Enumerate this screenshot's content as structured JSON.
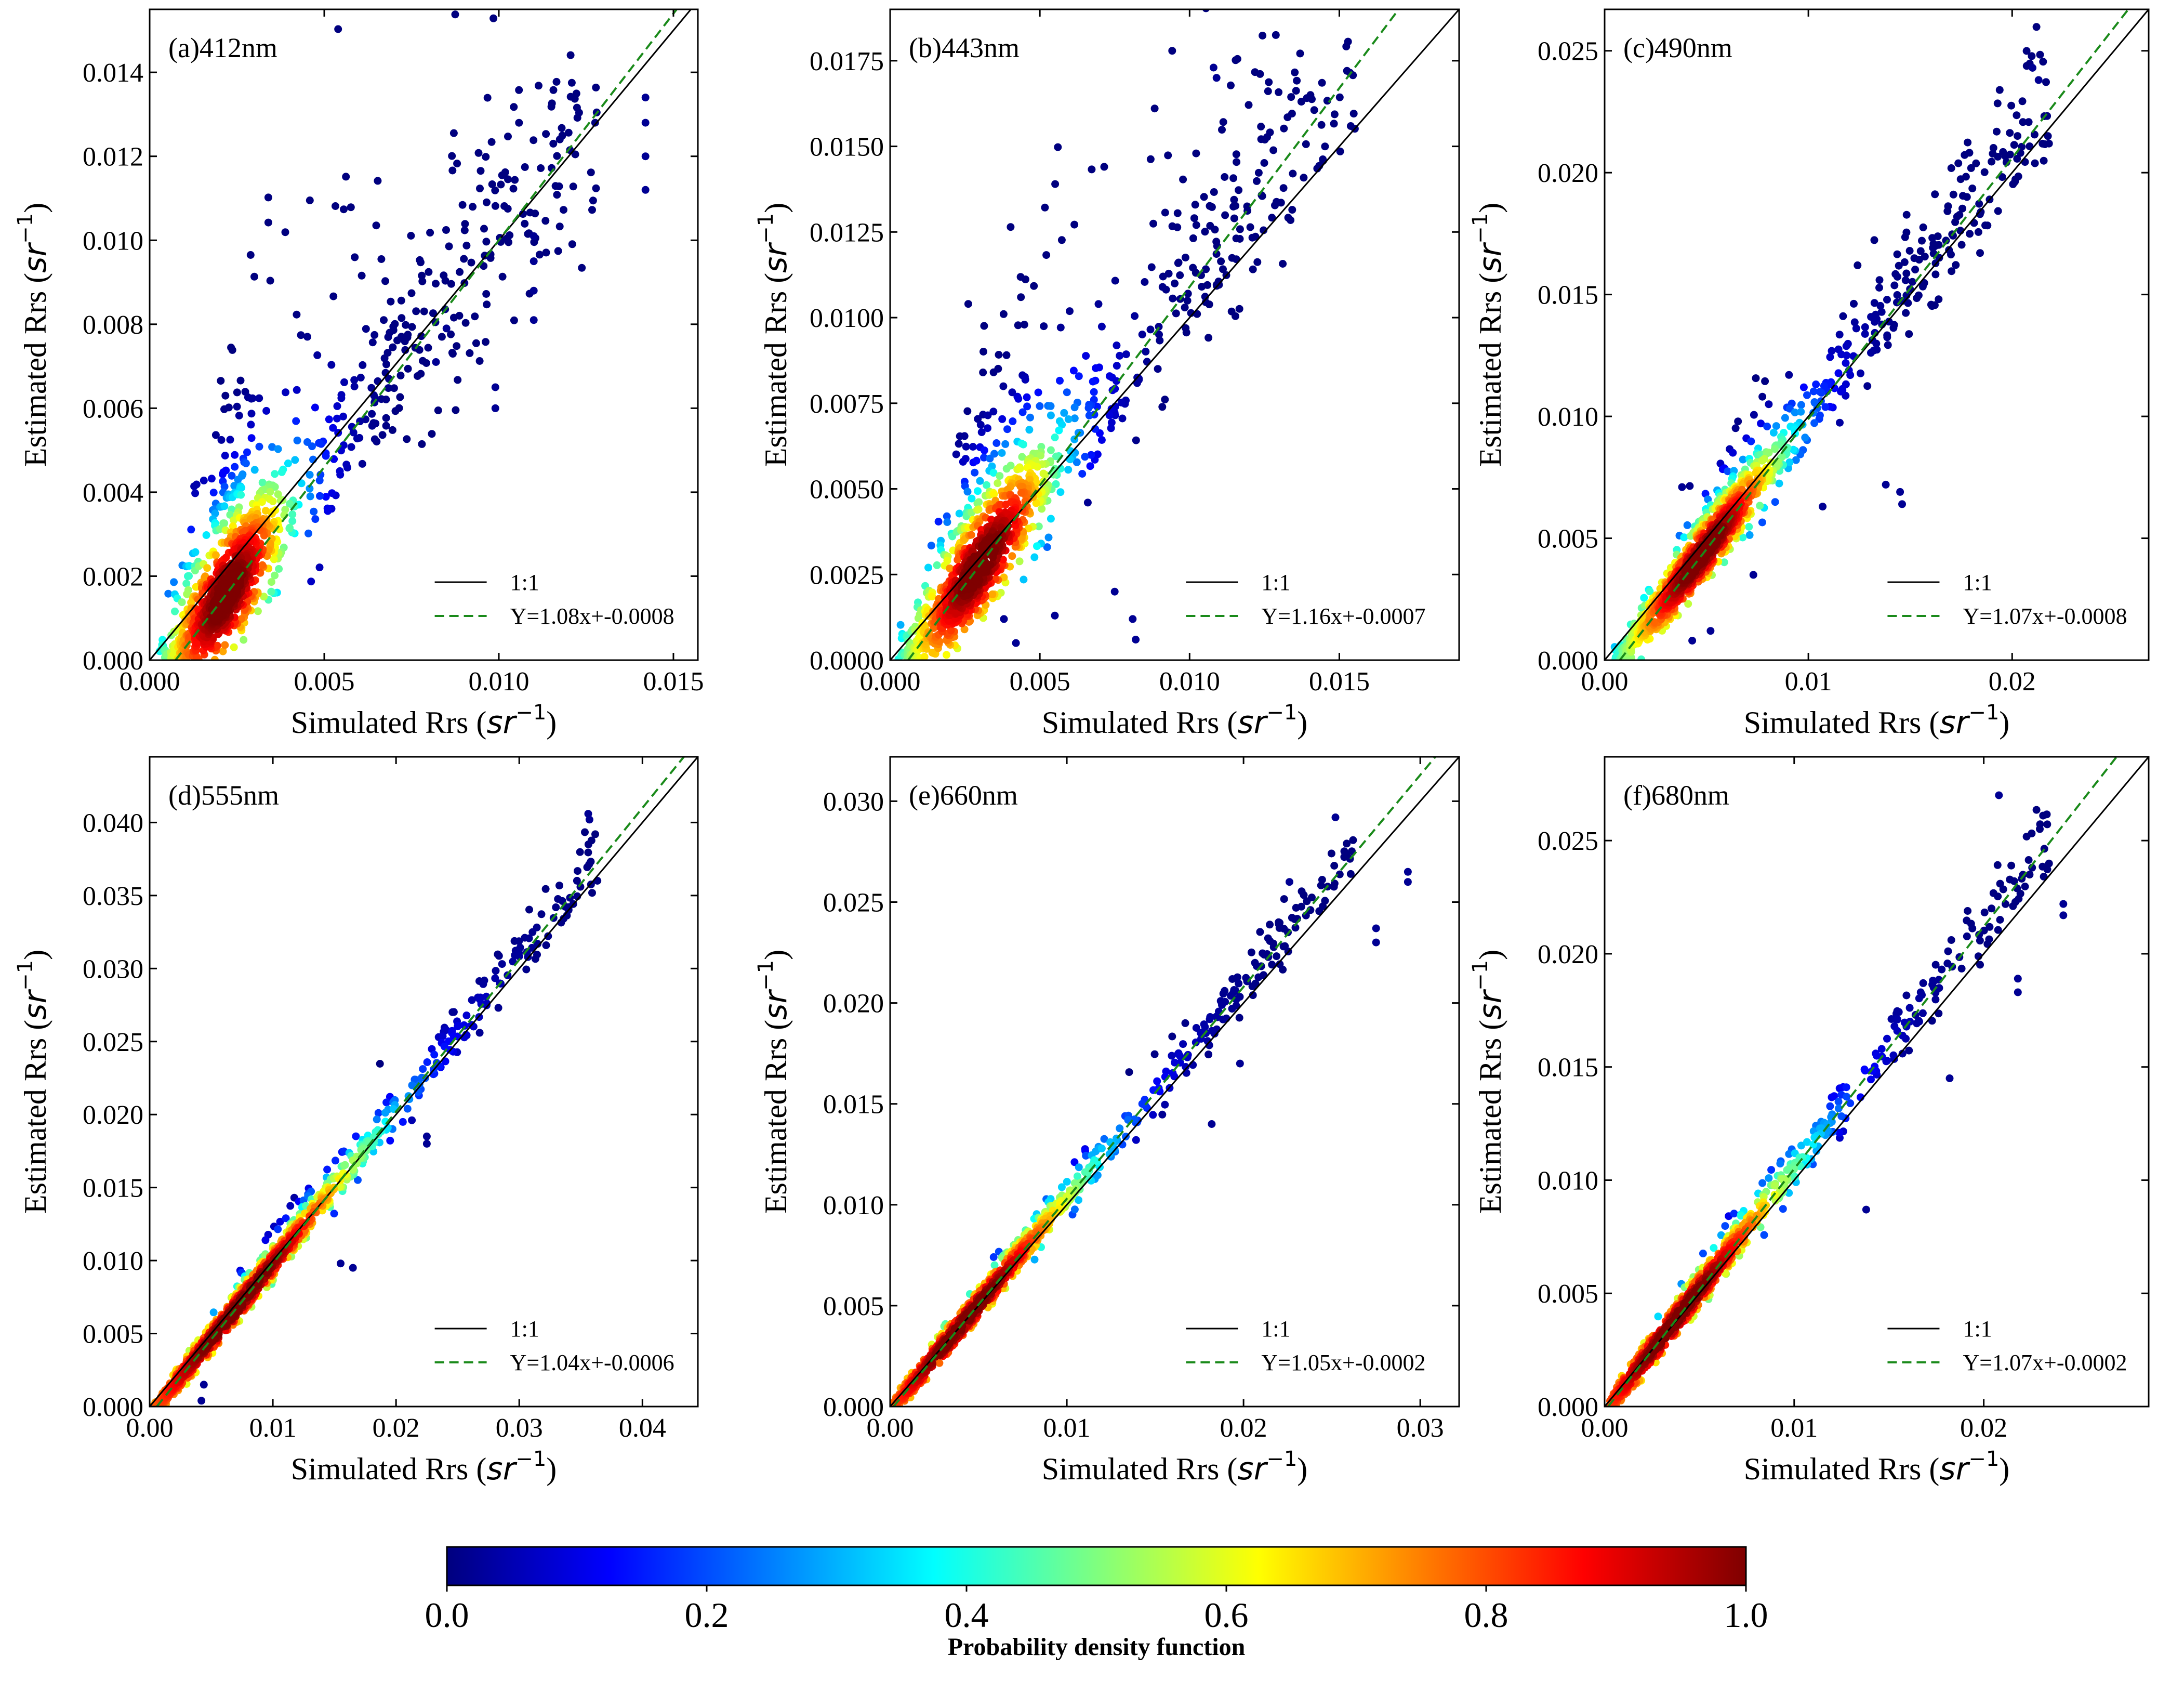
{
  "chart_data": [
    {
      "type": "scatter",
      "panel_label": "(a)412nm",
      "xlabel_text": "Simulated Rrs",
      "ylabel_text": "Estimated Rrs",
      "unit_base": "sr",
      "unit_exp": "−1",
      "xlim": [
        0,
        0.0157
      ],
      "ylim": [
        0,
        0.0155
      ],
      "xticks": [
        0.0,
        0.005,
        0.01,
        0.015
      ],
      "xtick_labels": [
        "0.000",
        "0.005",
        "0.010",
        "0.015"
      ],
      "yticks": [
        0,
        0.002,
        0.004,
        0.006,
        0.008,
        0.01,
        0.012,
        0.014
      ],
      "ytick_labels": [
        "0.000",
        "0.002",
        "0.004",
        "0.006",
        "0.008",
        "0.010",
        "0.012",
        "0.014"
      ],
      "legend": [
        "1:1",
        "Y=1.08x+-0.0008"
      ],
      "fit": {
        "slope": 1.08,
        "intercept": -0.0008
      },
      "cloud": {
        "center": [
          0.0022,
          0.0016
        ],
        "spread_along": 0.0016,
        "spread_across": 0.0011,
        "upper_scatter": 0.0035,
        "n": 1300
      },
      "outliers": [
        [
          0.0142,
          0.0134
        ],
        [
          0.0142,
          0.0128
        ],
        [
          0.0142,
          0.012
        ],
        [
          0.0142,
          0.0112
        ],
        [
          0.011,
          0.0101
        ],
        [
          0.011,
          0.0095
        ],
        [
          0.011,
          0.0088
        ],
        [
          0.011,
          0.0081
        ],
        [
          0.0099,
          0.0065
        ],
        [
          0.0099,
          0.006
        ],
        [
          0.0082,
          0.0071
        ],
        [
          0.0085,
          0.0079
        ]
      ]
    },
    {
      "type": "scatter",
      "panel_label": "(b)443nm",
      "xlabel_text": "Simulated Rrs",
      "ylabel_text": "Estimated Rrs",
      "unit_base": "sr",
      "unit_exp": "−1",
      "xlim": [
        0,
        0.019
      ],
      "ylim": [
        0,
        0.019
      ],
      "xticks": [
        0.0,
        0.005,
        0.01,
        0.015
      ],
      "xtick_labels": [
        "0.000",
        "0.005",
        "0.010",
        "0.015"
      ],
      "yticks": [
        0,
        0.0025,
        0.005,
        0.0075,
        0.01,
        0.0125,
        0.015,
        0.0175
      ],
      "ytick_labels": [
        "0.0000",
        "0.0025",
        "0.0050",
        "0.0075",
        "0.0100",
        "0.0125",
        "0.0150",
        "0.0175"
      ],
      "legend": [
        "1:1",
        "Y=1.16x+-0.0007"
      ],
      "fit": {
        "slope": 1.16,
        "intercept": -0.0007
      },
      "cloud": {
        "center": [
          0.003,
          0.0027
        ],
        "spread_along": 0.0022,
        "spread_across": 0.0012,
        "upper_scatter": 0.0042,
        "n": 1300
      },
      "outliers": [
        [
          0.0108,
          0.0173
        ],
        [
          0.0109,
          0.017
        ],
        [
          0.0082,
          0.0006
        ],
        [
          0.0081,
          0.0012
        ],
        [
          0.0075,
          0.002
        ],
        [
          0.0038,
          0.0012
        ],
        [
          0.0042,
          0.0005
        ],
        [
          0.0055,
          0.0013
        ],
        [
          0.0066,
          0.0046
        ]
      ]
    },
    {
      "type": "scatter",
      "panel_label": "(c)490nm",
      "xlabel_text": "Simulated Rrs",
      "ylabel_text": "Estimated Rrs",
      "unit_base": "sr",
      "unit_exp": "−1",
      "xlim": [
        0,
        0.0267
      ],
      "ylim": [
        0,
        0.0267
      ],
      "xticks": [
        0.0,
        0.01,
        0.02
      ],
      "xtick_labels": [
        "0.00",
        "0.01",
        "0.02"
      ],
      "yticks": [
        0,
        0.005,
        0.01,
        0.015,
        0.02,
        0.025
      ],
      "ytick_labels": [
        "0.000",
        "0.005",
        "0.010",
        "0.015",
        "0.020",
        "0.025"
      ],
      "legend": [
        "1:1",
        "Y=1.07x+-0.0008"
      ],
      "fit": {
        "slope": 1.07,
        "intercept": -0.0008
      },
      "cloud": {
        "center": [
          0.0048,
          0.0043
        ],
        "spread_along": 0.0035,
        "spread_across": 0.0009,
        "upper_scatter": 0.0018,
        "n": 1300
      },
      "outliers": [
        [
          0.021,
          0.0243
        ],
        [
          0.0213,
          0.0238
        ],
        [
          0.0145,
          0.0069
        ],
        [
          0.0138,
          0.0072
        ],
        [
          0.0146,
          0.0064
        ],
        [
          0.0073,
          0.0035
        ],
        [
          0.0052,
          0.0012
        ],
        [
          0.0043,
          0.0008
        ],
        [
          0.0107,
          0.0063
        ],
        [
          0.0038,
          0.0071
        ]
      ]
    },
    {
      "type": "scatter",
      "panel_label": "(d)555nm",
      "xlabel_text": "Simulated Rrs",
      "ylabel_text": "Estimated Rrs",
      "unit_base": "sr",
      "unit_exp": "−1",
      "xlim": [
        0,
        0.0445
      ],
      "ylim": [
        0,
        0.0445
      ],
      "xticks": [
        0.0,
        0.01,
        0.02,
        0.03,
        0.04
      ],
      "xtick_labels": [
        "0.00",
        "0.01",
        "0.02",
        "0.03",
        "0.04"
      ],
      "yticks": [
        0,
        0.005,
        0.01,
        0.015,
        0.02,
        0.025,
        0.03,
        0.035,
        0.04
      ],
      "ytick_labels": [
        "0.000",
        "0.005",
        "0.010",
        "0.015",
        "0.020",
        "0.025",
        "0.030",
        "0.035",
        "0.040"
      ],
      "legend": [
        "1:1",
        "Y=1.04x+-0.0006"
      ],
      "fit": {
        "slope": 1.04,
        "intercept": -0.0006
      },
      "cloud": {
        "center": [
          0.007,
          0.0066
        ],
        "spread_along": 0.0095,
        "spread_across": 0.0008,
        "upper_scatter": 0.0012,
        "n": 1100
      },
      "outliers": [
        [
          0.0356,
          0.0406
        ],
        [
          0.0357,
          0.0402
        ],
        [
          0.0225,
          0.018
        ],
        [
          0.0225,
          0.0185
        ],
        [
          0.0165,
          0.0095
        ],
        [
          0.0155,
          0.0098
        ],
        [
          0.0042,
          0.0004
        ],
        [
          0.0044,
          0.0015
        ]
      ]
    },
    {
      "type": "scatter",
      "panel_label": "(e)660nm",
      "xlabel_text": "Simulated Rrs",
      "ylabel_text": "Estimated Rrs",
      "unit_base": "sr",
      "unit_exp": "−1",
      "xlim": [
        0,
        0.0322
      ],
      "ylim": [
        0,
        0.0322
      ],
      "xticks": [
        0.0,
        0.01,
        0.02,
        0.03
      ],
      "xtick_labels": [
        "0.00",
        "0.01",
        "0.02",
        "0.03"
      ],
      "yticks": [
        0,
        0.005,
        0.01,
        0.015,
        0.02,
        0.025,
        0.03
      ],
      "ytick_labels": [
        "0.000",
        "0.005",
        "0.010",
        "0.015",
        "0.020",
        "0.025",
        "0.030"
      ],
      "legend": [
        "1:1",
        "Y=1.05x+-0.0002"
      ],
      "fit": {
        "slope": 1.05,
        "intercept": -0.0002
      },
      "cloud": {
        "center": [
          0.0042,
          0.0042
        ],
        "spread_along": 0.006,
        "spread_across": 0.0006,
        "upper_scatter": 0.0006,
        "n": 1000
      },
      "outliers": [
        [
          0.0293,
          0.0265
        ],
        [
          0.0293,
          0.026
        ],
        [
          0.0275,
          0.0237
        ],
        [
          0.0275,
          0.023
        ],
        [
          0.0252,
          0.0292
        ],
        [
          0.0226,
          0.026
        ],
        [
          0.0198,
          0.017
        ],
        [
          0.0182,
          0.014
        ]
      ]
    },
    {
      "type": "scatter",
      "panel_label": "(f)680nm",
      "xlabel_text": "Simulated Rrs",
      "ylabel_text": "Estimated Rrs",
      "unit_base": "sr",
      "unit_exp": "−1",
      "xlim": [
        0,
        0.0287
      ],
      "ylim": [
        0,
        0.0287
      ],
      "xticks": [
        0.0,
        0.01,
        0.02
      ],
      "xtick_labels": [
        "0.00",
        "0.01",
        "0.02"
      ],
      "yticks": [
        0,
        0.005,
        0.01,
        0.015,
        0.02,
        0.025
      ],
      "ytick_labels": [
        "0.000",
        "0.005",
        "0.010",
        "0.015",
        "0.020",
        "0.025"
      ],
      "legend": [
        "1:1",
        "Y=1.07x+-0.0002"
      ],
      "fit": {
        "slope": 1.07,
        "intercept": -0.0002
      },
      "cloud": {
        "center": [
          0.0038,
          0.0038
        ],
        "spread_along": 0.0055,
        "spread_across": 0.0006,
        "upper_scatter": 0.0007,
        "n": 1000
      },
      "outliers": [
        [
          0.0242,
          0.0222
        ],
        [
          0.0242,
          0.0217
        ],
        [
          0.0218,
          0.0189
        ],
        [
          0.0218,
          0.0183
        ],
        [
          0.0208,
          0.027
        ],
        [
          0.0182,
          0.0145
        ],
        [
          0.0164,
          0.0173
        ],
        [
          0.0138,
          0.0087
        ]
      ]
    }
  ],
  "colorbar": {
    "title": "Probability density function",
    "ticks": [
      0.0,
      0.2,
      0.4,
      0.6,
      0.8,
      1.0
    ],
    "tick_labels": [
      "0.0",
      "0.2",
      "0.4",
      "0.6",
      "0.8",
      "1.0"
    ],
    "range": [
      0,
      1
    ],
    "colormap": "jet",
    "colormap_stops": [
      "#00007f",
      "#0000ff",
      "#007fff",
      "#00ffff",
      "#7fff7f",
      "#ffff00",
      "#ff7f00",
      "#ff0000",
      "#7f0000"
    ]
  },
  "colors": {
    "one_to_one_line": "#000000",
    "fit_line": "#1a8a1a",
    "axes": "#000000",
    "background": "#ffffff"
  }
}
